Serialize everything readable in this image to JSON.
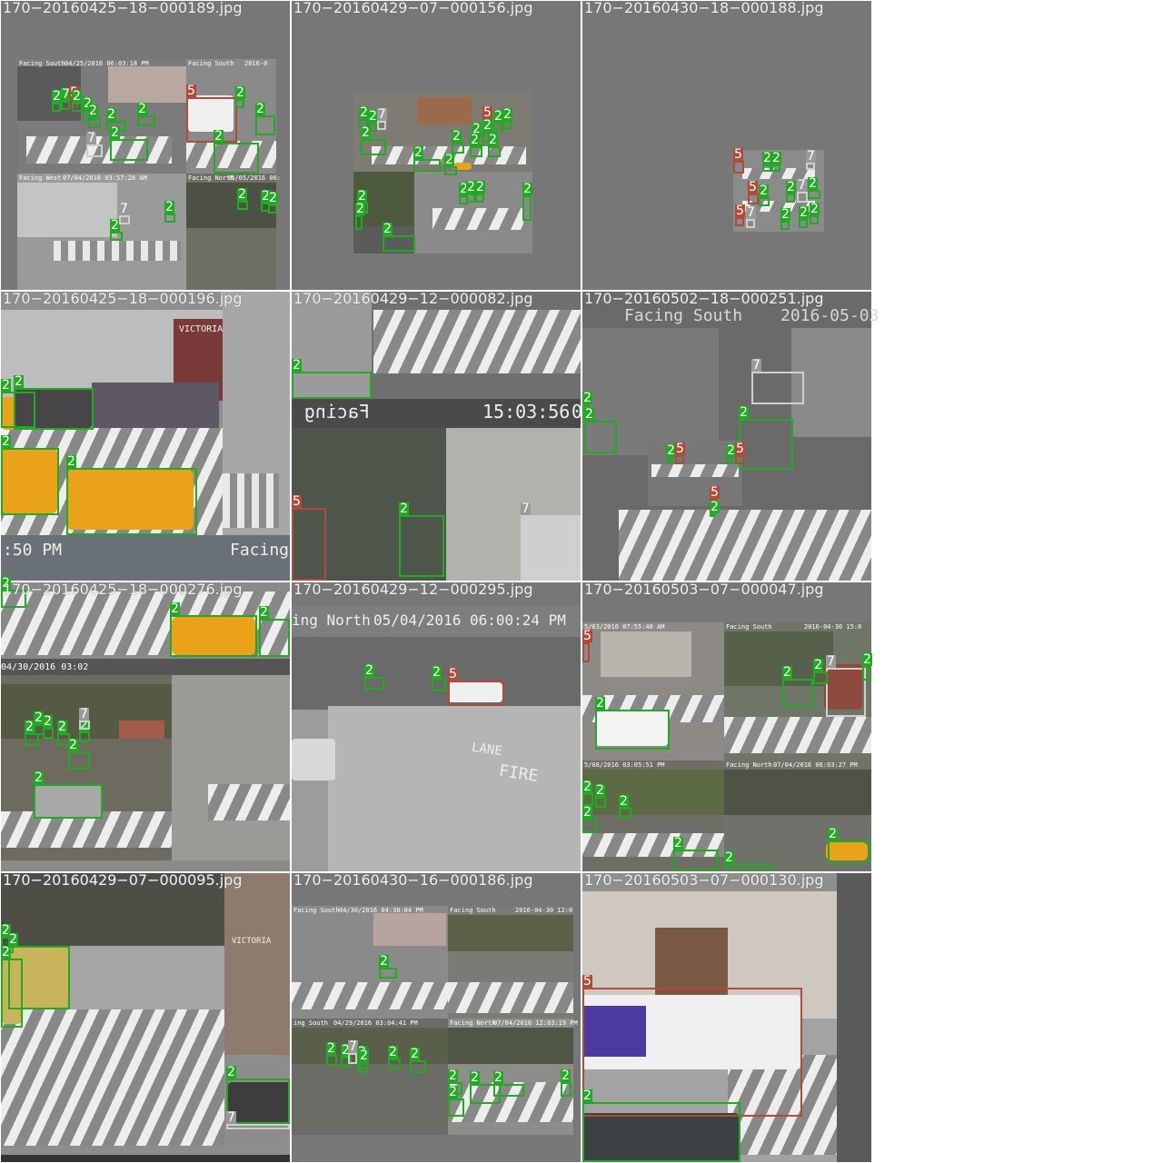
{
  "tiles": [
    {
      "filename": "170−20160425−18−000189.jpg"
    },
    {
      "filename": "170−20160429−07−000156.jpg"
    },
    {
      "filename": "170−20160430−18−000188.jpg"
    },
    {
      "filename": "170−20160425−18−000196.jpg"
    },
    {
      "filename": "170−20160429−12−000082.jpg"
    },
    {
      "filename": "170−20160502−18−000251.jpg"
    },
    {
      "filename": "170−20160425−18−000276.jpg"
    },
    {
      "filename": "170−20160429−12−000295.jpg"
    },
    {
      "filename": "170−20160503−07−000047.jpg"
    },
    {
      "filename": "170−20160429−07−000095.jpg"
    },
    {
      "filename": "170−20160430−16−000186.jpg"
    },
    {
      "filename": "170−20160503−07−000130.jpg"
    }
  ],
  "overlay": {
    "t1": {
      "cam_a": "Facing South",
      "ts_a": "04/25/2016 06:03:18 PM",
      "cam_b": "Facing South",
      "ts_b": "2016-0",
      "cam_c": "Facing West",
      "ts_c": "07/04/2016 03:57:28 AM",
      "cam_d": "Facing North",
      "ts_d": "05/05/2016 06:"
    },
    "t5": {
      "facing": "Facing",
      "clock": "15:03:56",
      "clock_prefix": "0"
    },
    "t6": {
      "cam": "Facing South",
      "date": "2016-05-03"
    },
    "t7": {
      "pm": ":50 PM",
      "facing": "Facing"
    },
    "t8": {
      "cam": "ing North",
      "ts": "05/04/2016 06:00:24 PM",
      "lane": "LANE",
      "fire": "FIRE"
    },
    "t9": {
      "ts_a": "5/03/2016 07:55:40 AM",
      "cam_b": "Facing South",
      "ts_b": "2016-04-30 15:0",
      "ts_c": "5/08/2016 03:05:51 PM",
      "cam_d": "Facing North",
      "ts_d": "07/04/2016 06:03:27 PM"
    },
    "t10": {
      "sign": "VICTORIA"
    },
    "t11": {
      "cam_a": "Facing South",
      "ts_a": "04/30/2016 04:38:04 PM",
      "cam_b": "Facing South",
      "ts_b": "2016-04-30 12:0",
      "cam_c": "ing South",
      "ts_c": "04/29/2016 03:04:41 PM",
      "cam_d": "Facing North",
      "ts_d": "07/04/2016 12:03:19 PM"
    },
    "t4": {
      "sign": "VICTORIA"
    }
  },
  "detections": {
    "t1": [
      "2",
      "7",
      "5",
      "2",
      "2",
      "2",
      "2",
      "2",
      "7",
      "2",
      "5",
      "2",
      "2",
      "2",
      "2",
      "2",
      "2",
      "2",
      "2",
      "7",
      "2",
      "2"
    ],
    "t2": [
      "2",
      "2",
      "7",
      "5",
      "2",
      "2",
      "2",
      "2",
      "2",
      "2",
      "2",
      "2",
      "2",
      "2",
      "2",
      "2",
      "2",
      "2",
      "2",
      "2",
      "2"
    ],
    "t3": [
      "5",
      "2",
      "2",
      "7",
      "5",
      "2",
      "2",
      "7",
      "2",
      "5",
      "7",
      "2",
      "2",
      "2"
    ],
    "t4": [
      "2",
      "2",
      "2",
      "2"
    ],
    "t5": [
      "2",
      "5",
      "2",
      "7"
    ],
    "t6": [
      "2",
      "2",
      "7",
      "2",
      "2",
      "5",
      "2",
      "5",
      "5",
      "2"
    ],
    "t7": [
      "2",
      "2",
      "2",
      "2",
      "2",
      "2",
      "2",
      "2",
      "7",
      "2",
      "2"
    ],
    "t8": [
      "2",
      "2",
      "5"
    ],
    "t9": [
      "5",
      "2",
      "2",
      "7",
      "2",
      "2",
      "2",
      "2",
      "2",
      "2",
      "2",
      "2",
      "2"
    ],
    "t10": [
      "2",
      "2",
      "2",
      "7"
    ],
    "t11": [
      "2",
      "2",
      "2",
      "7",
      "2",
      "2",
      "2",
      "2",
      "2",
      "2",
      "2",
      "2",
      "2"
    ],
    "t12": [
      "5",
      "2"
    ]
  }
}
